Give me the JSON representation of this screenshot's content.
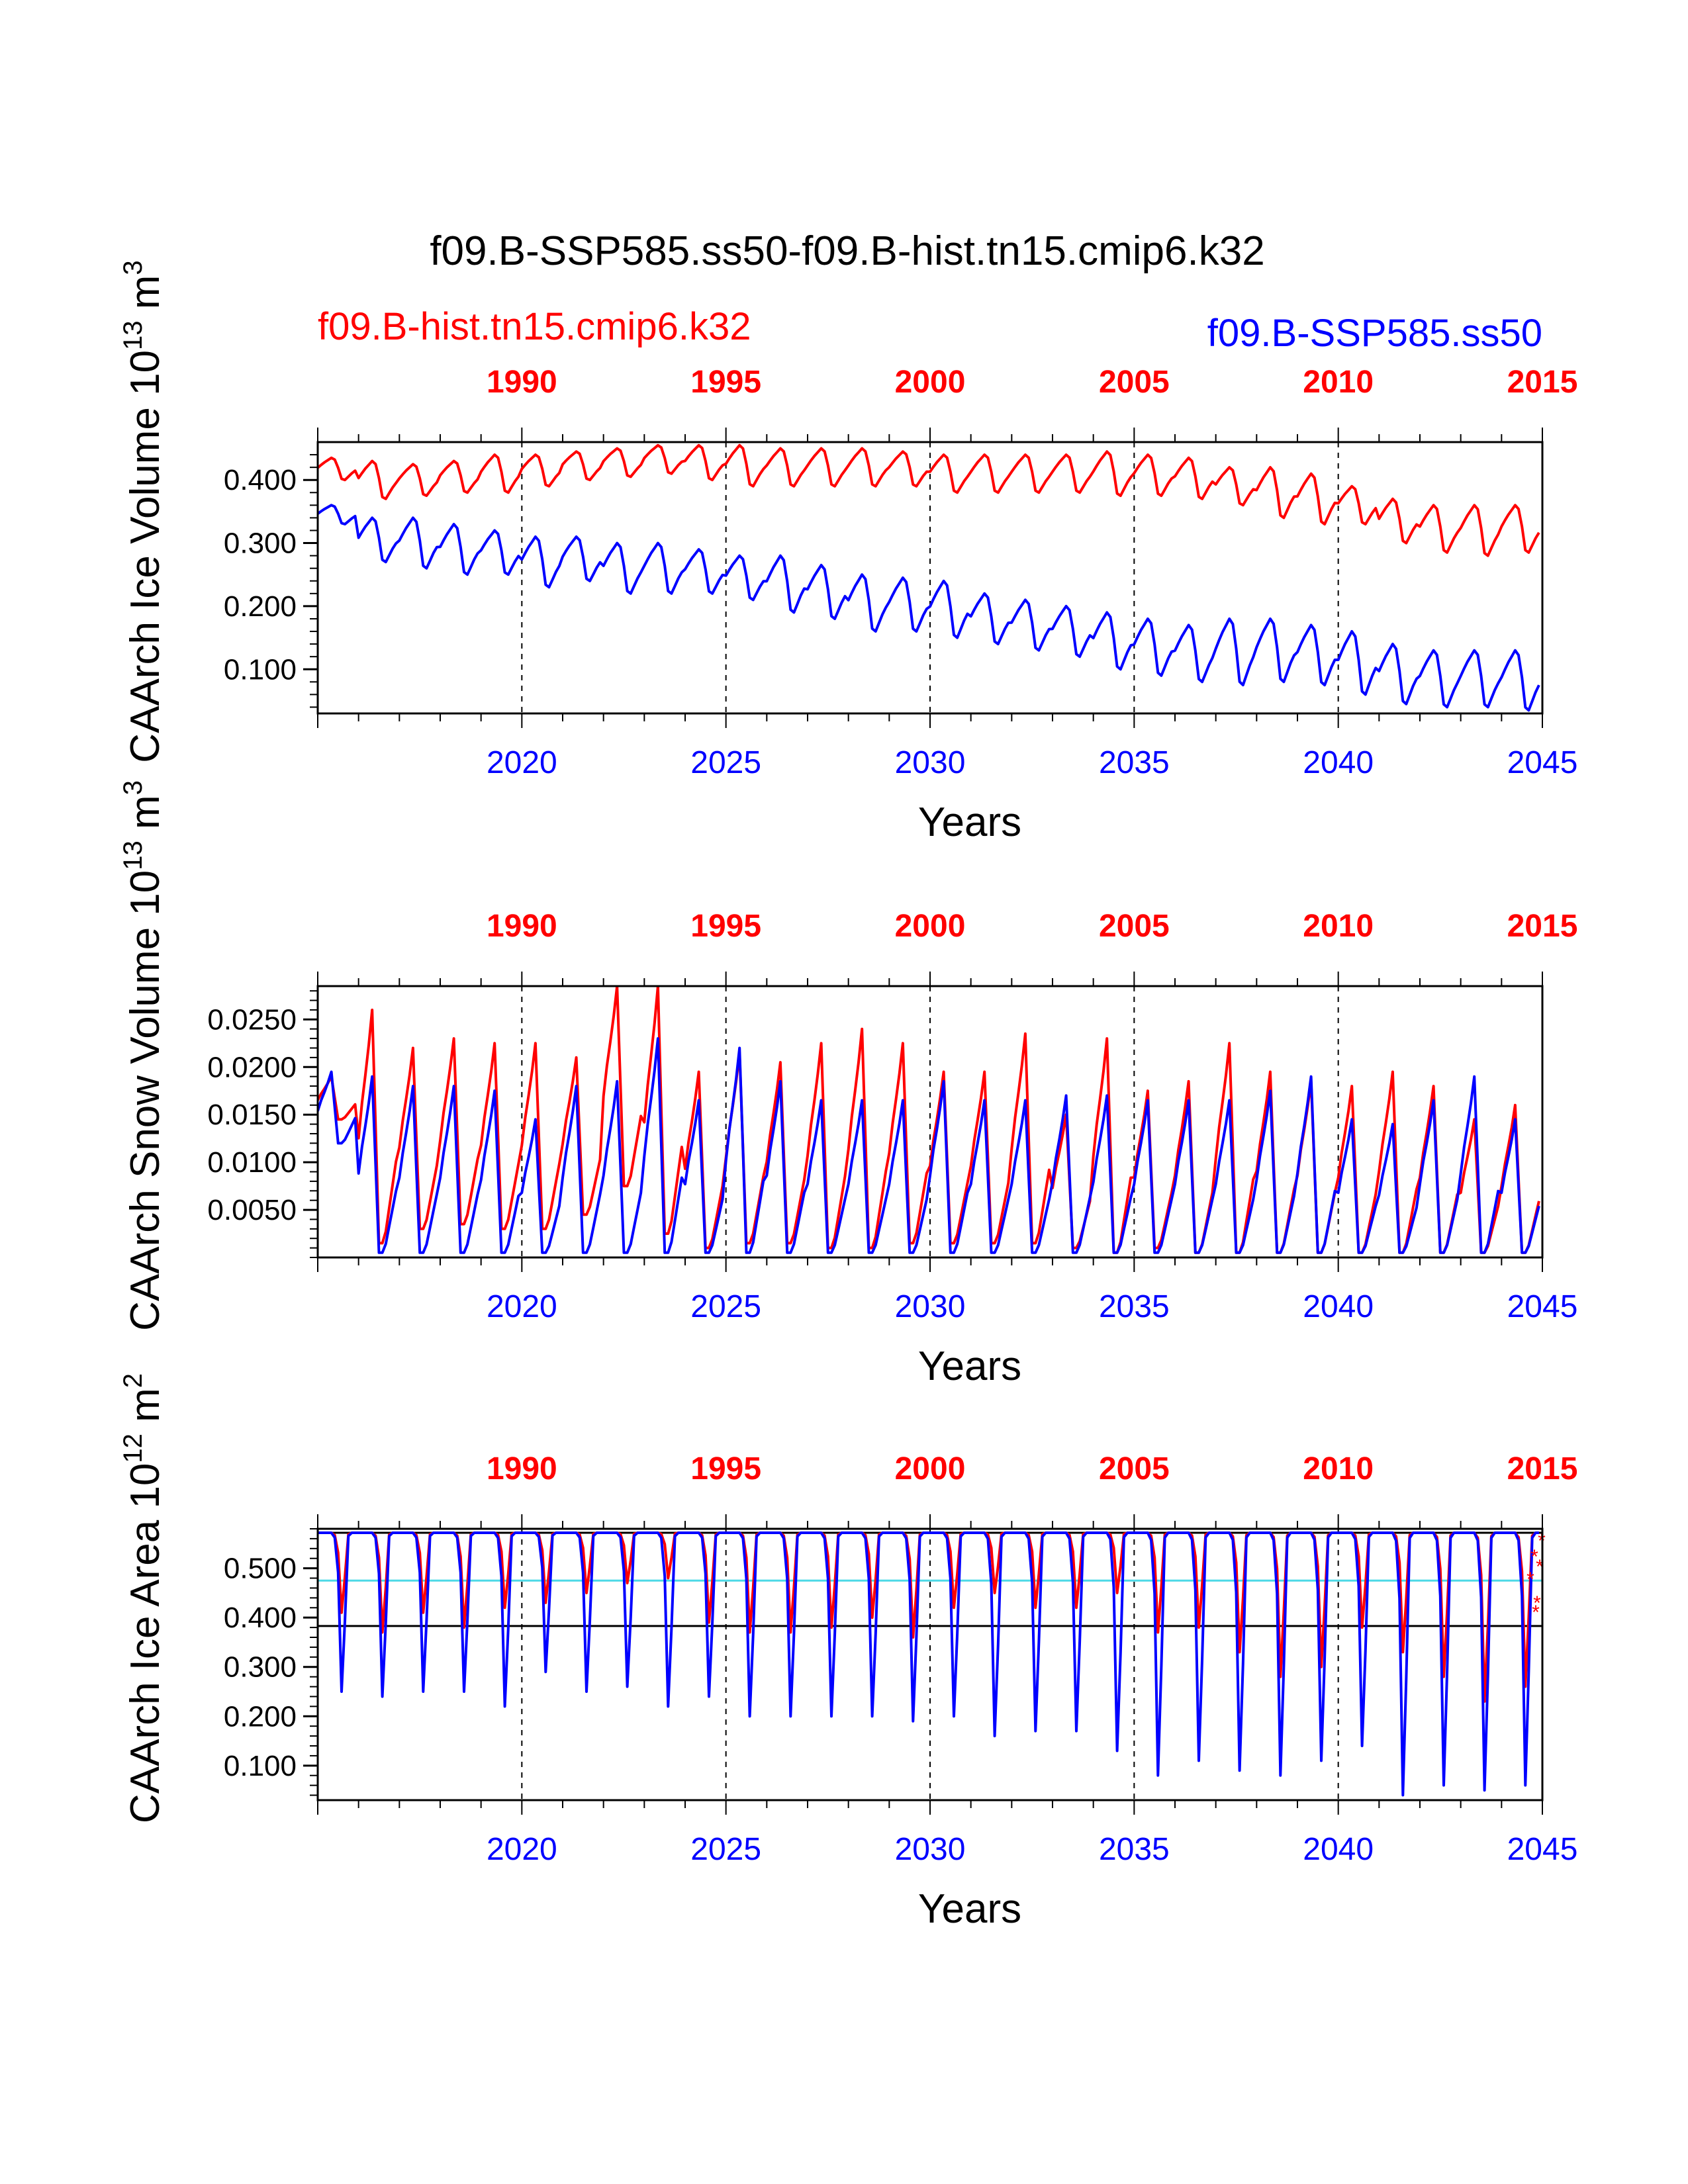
{
  "figure": {
    "title": "f09.B-SSP585.ss50-f09.B-hist.tn15.cmip6.k32",
    "legend_left": "f09.B-hist.tn15.cmip6.k32",
    "legend_right": "f09.B-SSP585.ss50",
    "colors": {
      "hist": "#ff0000",
      "ssp": "#0000ff",
      "ref_cyan": "#4dd9e6",
      "axis": "#000000"
    }
  },
  "chart_data": [
    {
      "type": "line",
      "title": "",
      "ylabel": "CAArch Ice Volume 10^13 m^3",
      "ylabel_parts": {
        "prefix": "CAArch Ice Volume 10",
        "exp": "13",
        "unit": " m",
        "unit_exp": "3"
      },
      "xlabel": "Years",
      "x_bottom_range": [
        2015,
        2045
      ],
      "x_bottom_ticks": [
        "2020",
        "2025",
        "2030",
        "2035",
        "2040",
        "2045"
      ],
      "x_top_range": [
        1985,
        2015
      ],
      "x_top_ticks": [
        "1990",
        "1995",
        "2000",
        "2005",
        "2010",
        "2015"
      ],
      "ylim": [
        0.03,
        0.46
      ],
      "y_ticks": [
        0.1,
        0.2,
        0.3,
        0.4
      ],
      "y_tick_labels": [
        "0.100",
        "0.200",
        "0.300",
        "0.400"
      ],
      "series": [
        {
          "name": "f09.B-hist.tn15.cmip6.k32",
          "color": "#ff0000",
          "annual_max": [
            0.435,
            0.43,
            0.425,
            0.43,
            0.44,
            0.44,
            0.445,
            0.45,
            0.455,
            0.455,
            0.455,
            0.45,
            0.45,
            0.45,
            0.445,
            0.44,
            0.44,
            0.44,
            0.44,
            0.445,
            0.44,
            0.435,
            0.42,
            0.42,
            0.41,
            0.39,
            0.37,
            0.36,
            0.36,
            0.36
          ],
          "annual_min": [
            0.4,
            0.37,
            0.375,
            0.38,
            0.38,
            0.39,
            0.4,
            0.405,
            0.41,
            0.4,
            0.39,
            0.39,
            0.39,
            0.39,
            0.39,
            0.38,
            0.38,
            0.38,
            0.38,
            0.375,
            0.375,
            0.37,
            0.36,
            0.34,
            0.33,
            0.33,
            0.3,
            0.285,
            0.28,
            0.285
          ]
        },
        {
          "name": "f09.B-SSP585.ss50",
          "color": "#0000ff",
          "annual_max": [
            0.36,
            0.34,
            0.34,
            0.33,
            0.32,
            0.31,
            0.31,
            0.3,
            0.3,
            0.29,
            0.28,
            0.28,
            0.265,
            0.25,
            0.245,
            0.24,
            0.22,
            0.21,
            0.2,
            0.19,
            0.18,
            0.17,
            0.18,
            0.18,
            0.17,
            0.16,
            0.14,
            0.13,
            0.13,
            0.13
          ],
          "annual_min": [
            0.33,
            0.27,
            0.26,
            0.25,
            0.25,
            0.23,
            0.24,
            0.22,
            0.22,
            0.22,
            0.21,
            0.19,
            0.18,
            0.16,
            0.16,
            0.15,
            0.14,
            0.13,
            0.12,
            0.1,
            0.09,
            0.08,
            0.075,
            0.08,
            0.075,
            0.06,
            0.045,
            0.04,
            0.04,
            0.035
          ]
        }
      ]
    },
    {
      "type": "line",
      "title": "",
      "ylabel": "CAArch Snow Volume 10^13 m^3",
      "ylabel_parts": {
        "prefix": "CAArch Snow Volume 10",
        "exp": "13",
        "unit": " m",
        "unit_exp": "3"
      },
      "xlabel": "Years",
      "x_bottom_range": [
        2015,
        2045
      ],
      "x_bottom_ticks": [
        "2020",
        "2025",
        "2030",
        "2035",
        "2040",
        "2045"
      ],
      "x_top_range": [
        1985,
        2015
      ],
      "x_top_ticks": [
        "1990",
        "1995",
        "2000",
        "2005",
        "2010",
        "2015"
      ],
      "ylim": [
        0.0,
        0.0285
      ],
      "y_ticks": [
        0.005,
        0.01,
        0.015,
        0.02,
        0.025
      ],
      "y_tick_labels": [
        "0.0050",
        "0.0100",
        "0.0150",
        "0.0200",
        "0.0250"
      ],
      "series": [
        {
          "name": "f09.B-hist.tn15.cmip6.k32",
          "color": "#ff0000",
          "annual_max": [
            0.019,
            0.026,
            0.022,
            0.023,
            0.0225,
            0.0225,
            0.021,
            0.0285,
            0.0285,
            0.0195,
            0.0215,
            0.0205,
            0.0225,
            0.024,
            0.0225,
            0.0195,
            0.0195,
            0.0235,
            0.015,
            0.023,
            0.0175,
            0.0185,
            0.0225,
            0.0195,
            0.0185,
            0.018,
            0.0195,
            0.018,
            0.0145,
            0.016
          ],
          "annual_min": [
            0.0145,
            0.0015,
            0.003,
            0.0035,
            0.003,
            0.003,
            0.0045,
            0.0075,
            0.0025,
            0.001,
            0.0015,
            0.0015,
            0.001,
            0.001,
            0.0015,
            0.0015,
            0.0015,
            0.0015,
            0.001,
            0.0005,
            0.001,
            0.0005,
            0.0005,
            0.0005,
            0.0005,
            0.0005,
            0.0005,
            0.0005,
            0.0005,
            0.0005
          ]
        },
        {
          "name": "f09.B-SSP585.ss50",
          "color": "#0000ff",
          "annual_max": [
            0.0195,
            0.019,
            0.018,
            0.018,
            0.0175,
            0.0145,
            0.018,
            0.0185,
            0.023,
            0.0165,
            0.022,
            0.0185,
            0.0165,
            0.0165,
            0.0165,
            0.0185,
            0.0165,
            0.0165,
            0.017,
            0.017,
            0.0165,
            0.0165,
            0.0165,
            0.0175,
            0.019,
            0.0145,
            0.014,
            0.0165,
            0.019,
            0.0145
          ],
          "annual_min": [
            0.012,
            0.0005,
            0.0005,
            0.0005,
            0.0005,
            0.0005,
            0.0005,
            0.0005,
            0.0005,
            0.0005,
            0.0005,
            0.0005,
            0.0005,
            0.0005,
            0.0005,
            0.0005,
            0.0005,
            0.0005,
            0.0005,
            0.0005,
            0.0005,
            0.0005,
            0.0005,
            0.0005,
            0.0005,
            0.0005,
            0.0005,
            0.0005,
            0.0005,
            0.0005
          ]
        }
      ]
    },
    {
      "type": "line",
      "title": "",
      "ylabel": "CAArch Ice Area 10^12 m^2",
      "ylabel_parts": {
        "prefix": "CAArch Ice Area 10",
        "exp": "12",
        "unit": " m",
        "unit_exp": "2"
      },
      "xlabel": "Years",
      "x_bottom_range": [
        2015,
        2045
      ],
      "x_bottom_ticks": [
        "2020",
        "2025",
        "2030",
        "2035",
        "2040",
        "2045"
      ],
      "x_top_range": [
        1985,
        2015
      ],
      "x_top_ticks": [
        "1990",
        "1995",
        "2000",
        "2005",
        "2010",
        "2015"
      ],
      "ylim": [
        0.03,
        0.58
      ],
      "y_ticks": [
        0.1,
        0.2,
        0.3,
        0.4,
        0.5
      ],
      "y_tick_labels": [
        "0.100",
        "0.200",
        "0.300",
        "0.400",
        "0.500"
      ],
      "reference_lines": [
        {
          "value": 0.572,
          "color": "#000000"
        },
        {
          "value": 0.475,
          "color": "#4dd9e6"
        },
        {
          "value": 0.383,
          "color": "#000000"
        }
      ],
      "series": [
        {
          "name": "f09.B-hist.tn15.cmip6.k32",
          "color": "#ff0000",
          "annual_max": [
            0.572,
            0.572,
            0.572,
            0.572,
            0.572,
            0.572,
            0.572,
            0.572,
            0.572,
            0.572,
            0.572,
            0.572,
            0.572,
            0.572,
            0.572,
            0.572,
            0.572,
            0.572,
            0.572,
            0.572,
            0.572,
            0.572,
            0.572,
            0.572,
            0.572,
            0.572,
            0.572,
            0.572,
            0.572,
            0.572
          ],
          "annual_min": [
            0.41,
            0.37,
            0.41,
            0.38,
            0.42,
            0.43,
            0.45,
            0.47,
            0.48,
            0.39,
            0.37,
            0.37,
            0.38,
            0.4,
            0.36,
            0.42,
            0.45,
            0.42,
            0.42,
            0.45,
            0.37,
            0.38,
            0.33,
            0.28,
            0.3,
            0.38,
            0.33,
            0.28,
            0.23,
            0.26
          ]
        },
        {
          "name": "f09.B-SSP585.ss50",
          "color": "#0000ff",
          "annual_max": [
            0.572,
            0.572,
            0.572,
            0.572,
            0.572,
            0.572,
            0.572,
            0.572,
            0.572,
            0.572,
            0.572,
            0.572,
            0.572,
            0.572,
            0.572,
            0.572,
            0.572,
            0.572,
            0.572,
            0.572,
            0.572,
            0.572,
            0.572,
            0.572,
            0.572,
            0.572,
            0.572,
            0.572,
            0.572,
            0.572
          ],
          "annual_min": [
            0.25,
            0.24,
            0.25,
            0.25,
            0.22,
            0.29,
            0.25,
            0.26,
            0.22,
            0.24,
            0.2,
            0.2,
            0.2,
            0.2,
            0.19,
            0.2,
            0.16,
            0.17,
            0.17,
            0.13,
            0.08,
            0.11,
            0.09,
            0.08,
            0.11,
            0.14,
            0.04,
            0.06,
            0.05,
            0.06
          ]
        }
      ]
    }
  ]
}
